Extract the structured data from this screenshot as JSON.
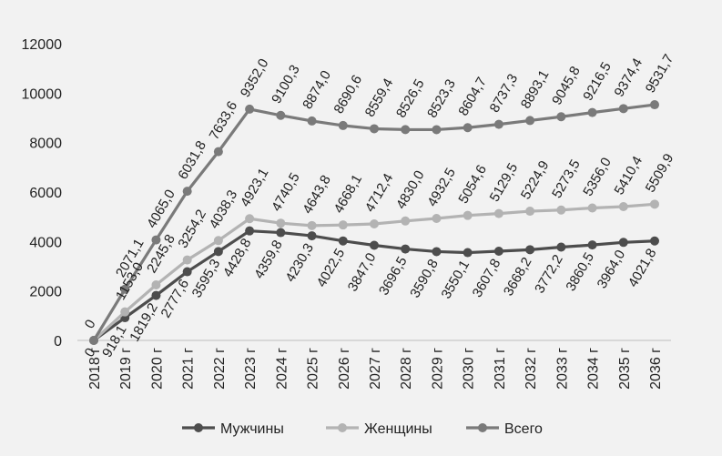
{
  "chart_data": {
    "type": "line",
    "categories": [
      "2018 г",
      "2019 г",
      "2020 г",
      "2021 г",
      "2022 г",
      "2023 г",
      "2024 г",
      "2025 г",
      "2026 г",
      "2027 г",
      "2028 г",
      "2029 г",
      "2030 г",
      "2031 г",
      "2032 г",
      "2033 г",
      "2034 г",
      "2035 г",
      "2036 г"
    ],
    "y_ticks": [
      "0",
      "2000",
      "4000",
      "6000",
      "8000",
      "10000",
      "12000"
    ],
    "ylim": [
      0,
      12000
    ],
    "grid": false,
    "legend_position": "bottom",
    "series": [
      {
        "name": "Мужчины",
        "color": "#4d4d4d",
        "values": [
          0,
          918.1,
          1819.2,
          2777.6,
          3595.3,
          4428.8,
          4359.8,
          4230.3,
          4022.5,
          3847.0,
          3696.5,
          3590.8,
          3550.1,
          3607.8,
          3668.2,
          3772.2,
          3860.5,
          3964.0,
          4021.8
        ],
        "labels": [
          "0",
          "918,1",
          "1819,2",
          "2777,6",
          "3595,3",
          "4428,8",
          "4359,8",
          "4230,3",
          "4022,5",
          "3847,0",
          "3696,5",
          "3590,8",
          "3550,1",
          "3607,8",
          "3668,2",
          "3772,2",
          "3860,5",
          "3964,0",
          "4021,8"
        ]
      },
      {
        "name": "Женщины",
        "color": "#b3b3b3",
        "values": [
          0,
          1153.0,
          2245.8,
          3254.2,
          4038.3,
          4923.1,
          4740.5,
          4643.8,
          4668.1,
          4712.4,
          4830.0,
          4932.5,
          5054.6,
          5129.5,
          5224.9,
          5273.5,
          5356.0,
          5410.4,
          5509.9
        ],
        "labels": [
          "",
          "1153,0",
          "2245,8",
          "3254,2",
          "4038,3",
          "4923,1",
          "4740,5",
          "4643,8",
          "4668,1",
          "4712,4",
          "4830,0",
          "4932,5",
          "5054,6",
          "5129,5",
          "5224,9",
          "5273,5",
          "5356,0",
          "5410,4",
          "5509,9"
        ]
      },
      {
        "name": "Всего",
        "color": "#7a7a7a",
        "values": [
          0,
          2071.1,
          4065.0,
          6031.8,
          7633.6,
          9352.0,
          9100.3,
          8874.0,
          8690.6,
          8559.4,
          8526.5,
          8523.3,
          8604.7,
          8737.3,
          8893.1,
          9045.8,
          9216.5,
          9374.4,
          9531.7
        ],
        "labels": [
          "0",
          "2071,1",
          "4065,0",
          "6031,8",
          "7633,6",
          "9352,0",
          "9100,3",
          "8874,0",
          "8690,6",
          "8559,4",
          "8526,5",
          "8523,3",
          "8604,7",
          "8737,3",
          "8893,1",
          "9045,8",
          "9216,5",
          "9374,4",
          "9531,7"
        ]
      }
    ]
  }
}
